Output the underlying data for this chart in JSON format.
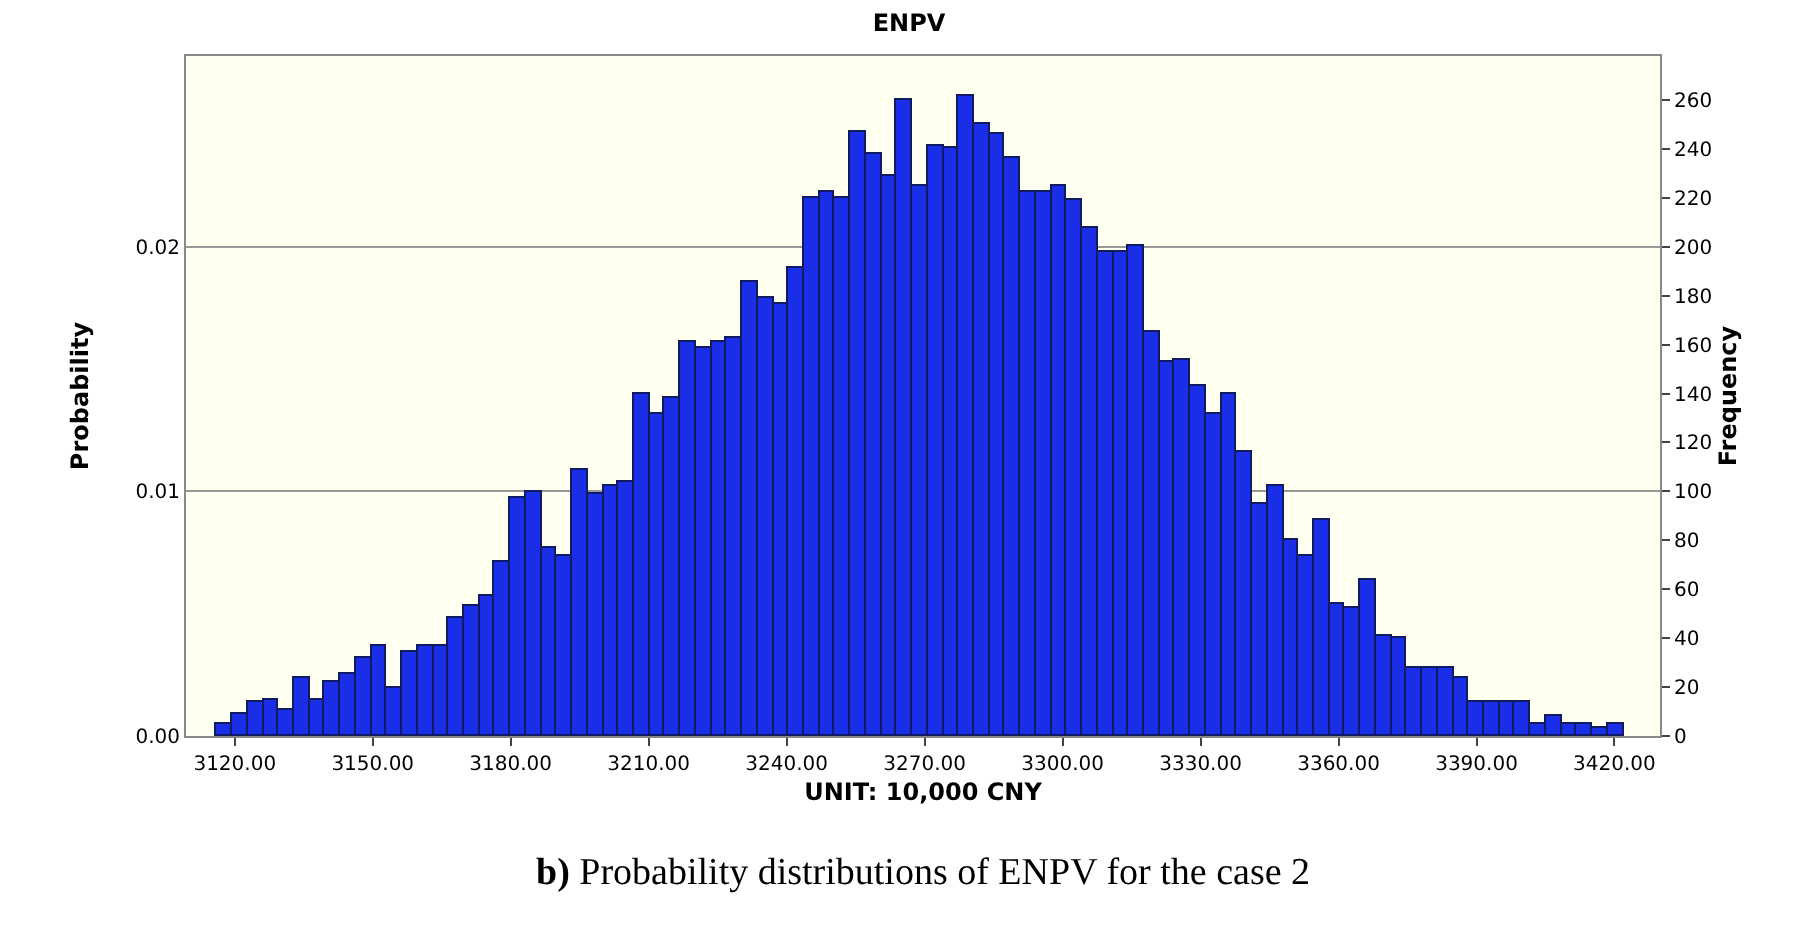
{
  "chart_data": {
    "type": "histogram",
    "title": "ENPV",
    "xlabel": "UNIT: 10,000 CNY",
    "ylabel": "Probability",
    "y2label": "Frequency",
    "annotations": [
      "b) Probability distributions of ENPV for the case 2"
    ],
    "bins": [
      3116.1,
      3119.46,
      3122.82,
      3126.18,
      3129.54,
      3132.9,
      3136.26,
      3139.62,
      3142.98,
      3146.34,
      3149.7,
      3153.06,
      3156.42,
      3159.78,
      3163.14,
      3166.5,
      3169.86,
      3173.22,
      3176.58,
      3179.94,
      3183.3,
      3186.66,
      3190.02,
      3193.38,
      3196.74,
      3200.1,
      3203.46,
      3206.82,
      3210.18,
      3213.54,
      3216.9,
      3220.26,
      3223.62,
      3226.98,
      3230.34,
      3233.7,
      3237.06,
      3240.42,
      3243.78,
      3247.14,
      3250.5,
      3253.86,
      3257.22,
      3260.58,
      3263.94,
      3267.3,
      3270.66,
      3274.02,
      3277.38,
      3280.74,
      3284.1,
      3287.46,
      3290.82,
      3294.18,
      3297.54,
      3300.9,
      3304.26,
      3307.62,
      3310.98,
      3314.34,
      3317.7,
      3321.06,
      3324.42,
      3327.78,
      3331.14,
      3334.5,
      3337.86,
      3341.22,
      3344.58,
      3347.94,
      3351.3,
      3354.66,
      3358.02,
      3361.38,
      3364.74,
      3368.1,
      3371.46,
      3374.82,
      3378.18,
      3381.54,
      3384.9,
      3388.26,
      3391.62,
      3394.98,
      3398.34,
      3401.7,
      3405.06,
      3408.42,
      3411.78,
      3415.14,
      3418.5,
      3421.86
    ],
    "series": [
      {
        "axis": "y2",
        "color": "#1a2ee8",
        "values": [
          5,
          9,
          14,
          15,
          11,
          24,
          15,
          22,
          25,
          32,
          37,
          20,
          34,
          37,
          37,
          48,
          53,
          57,
          71,
          97,
          100,
          77,
          74,
          109,
          99,
          102,
          104,
          140,
          132,
          138,
          161,
          159,
          161,
          163,
          186,
          179,
          177,
          191,
          220,
          222,
          220,
          247,
          238,
          229,
          260,
          225,
          241,
          240,
          262,
          250,
          246,
          236,
          222,
          222,
          225,
          219,
          208,
          198,
          198,
          200,
          165,
          153,
          154,
          143,
          132,
          140,
          116,
          95,
          102,
          80,
          74,
          88,
          54,
          52,
          64,
          41,
          40,
          28,
          28,
          28,
          24,
          14,
          14,
          14,
          14,
          5,
          8,
          5,
          5,
          3,
          5
        ]
      }
    ],
    "xlim": [
      3109.4,
      3429.9
    ],
    "xticks": [
      {
        "value": 3120,
        "label": "3120.00"
      },
      {
        "value": 3150,
        "label": "3150.00"
      },
      {
        "value": 3180,
        "label": "3180.00"
      },
      {
        "value": 3210,
        "label": "3210.00"
      },
      {
        "value": 3240,
        "label": "3240.00"
      },
      {
        "value": 3270,
        "label": "3270.00"
      },
      {
        "value": 3300,
        "label": "3300.00"
      },
      {
        "value": 3330,
        "label": "3330.00"
      },
      {
        "value": 3360,
        "label": "3360.00"
      },
      {
        "value": 3390,
        "label": "3390.00"
      },
      {
        "value": 3420,
        "label": "3420.00"
      }
    ],
    "ylim": [
      0,
      0.0278
    ],
    "yticks": [
      {
        "value": 0,
        "label": "0.00"
      },
      {
        "value": 0.01,
        "label": "0.01"
      },
      {
        "value": 0.02,
        "label": "0.02"
      }
    ],
    "y2lim": [
      0,
      278
    ],
    "y2ticks": [
      0,
      20,
      40,
      60,
      80,
      100,
      120,
      140,
      160,
      180,
      200,
      220,
      240,
      260
    ],
    "grid": "y"
  }
}
